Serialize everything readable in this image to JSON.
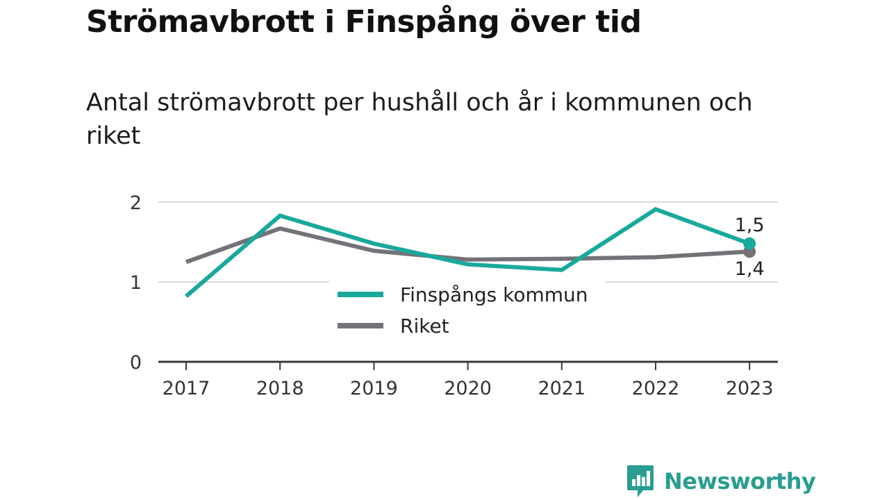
{
  "title": "Strömavbrott i Finspång över tid",
  "subtitle": "Antal strömavbrott per hushåll och år i kommunen och riket",
  "colors": {
    "finspang": "#19a99c",
    "riket": "#737278",
    "grid": "#d9d9d9",
    "axis": "#3a3a3a",
    "brand": "#2a9d91"
  },
  "chart_data": {
    "type": "line",
    "x": [
      "2017",
      "2018",
      "2019",
      "2020",
      "2021",
      "2022",
      "2023"
    ],
    "series": [
      {
        "name": "Finspångs kommun",
        "values": [
          0.82,
          1.83,
          1.48,
          1.22,
          1.15,
          1.91,
          1.48
        ]
      },
      {
        "name": "Riket",
        "values": [
          1.25,
          1.67,
          1.39,
          1.28,
          1.29,
          1.31,
          1.38
        ]
      }
    ],
    "yticks": [
      "0",
      "1",
      "2"
    ],
    "ylim": [
      0,
      2
    ],
    "end_labels": [
      "1,5",
      "1,4"
    ],
    "legend": "center",
    "grid": true
  },
  "brand": {
    "name": "Newsworthy",
    "icon": "newsworthy-logo-icon"
  }
}
